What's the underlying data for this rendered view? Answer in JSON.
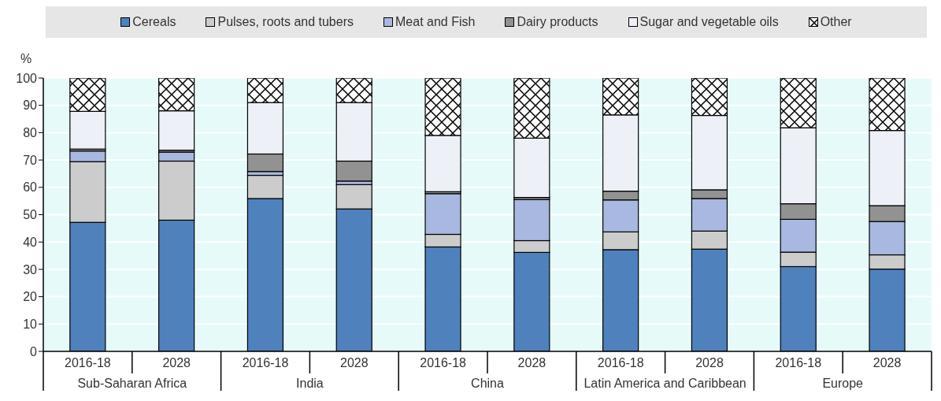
{
  "chart_data": {
    "type": "bar",
    "stacked": true,
    "ylabel": "%",
    "categories": [
      "2016-18",
      "2028",
      "2016-18",
      "2028",
      "2016-18",
      "2028",
      "2016-18",
      "2028",
      "2016-18",
      "2028"
    ],
    "annotations": [
      "Sub-Saharan Africa",
      "India",
      "China",
      "Latin America and Caribbean",
      "Europe"
    ],
    "series": [
      {
        "name": "Cereals",
        "color": "#4f81bd",
        "values": [
          47.2,
          48,
          55.9,
          52.1,
          38.2,
          36.2,
          37.2,
          37.4,
          31,
          30.1
        ]
      },
      {
        "name": "Pulses, roots and tubers",
        "color": "#cccccc",
        "values": [
          22.2,
          21.6,
          8.5,
          8.9,
          4.6,
          4.3,
          6.5,
          6.6,
          5.3,
          5.2
        ]
      },
      {
        "name": "Meat and Fish",
        "color": "#a8b8e0",
        "values": [
          3.9,
          3.3,
          1.4,
          1.3,
          14.9,
          15,
          11.7,
          11.9,
          12,
          12.2
        ]
      },
      {
        "name": "Dairy products",
        "color": "#929292",
        "values": [
          0.7,
          0.7,
          6.4,
          7.3,
          0.7,
          0.8,
          3.2,
          3.2,
          5.7,
          5.8
        ]
      },
      {
        "name": "Sugar and vegetable oils",
        "color": "#edf0f7",
        "values": [
          13.8,
          14.4,
          18.8,
          21.4,
          20.6,
          21.7,
          27.9,
          27.2,
          27.8,
          27.5
        ]
      },
      {
        "name": "Other",
        "color": "#ffffff",
        "values": [
          12.2,
          12,
          9,
          9,
          21,
          22,
          13.5,
          13.7,
          18.2,
          19.2
        ]
      }
    ],
    "ylim": [
      0,
      100
    ],
    "yticks": [
      0,
      10,
      20,
      30,
      40,
      50,
      60,
      70,
      80,
      90,
      100
    ],
    "grid": "y",
    "legend": "top"
  }
}
